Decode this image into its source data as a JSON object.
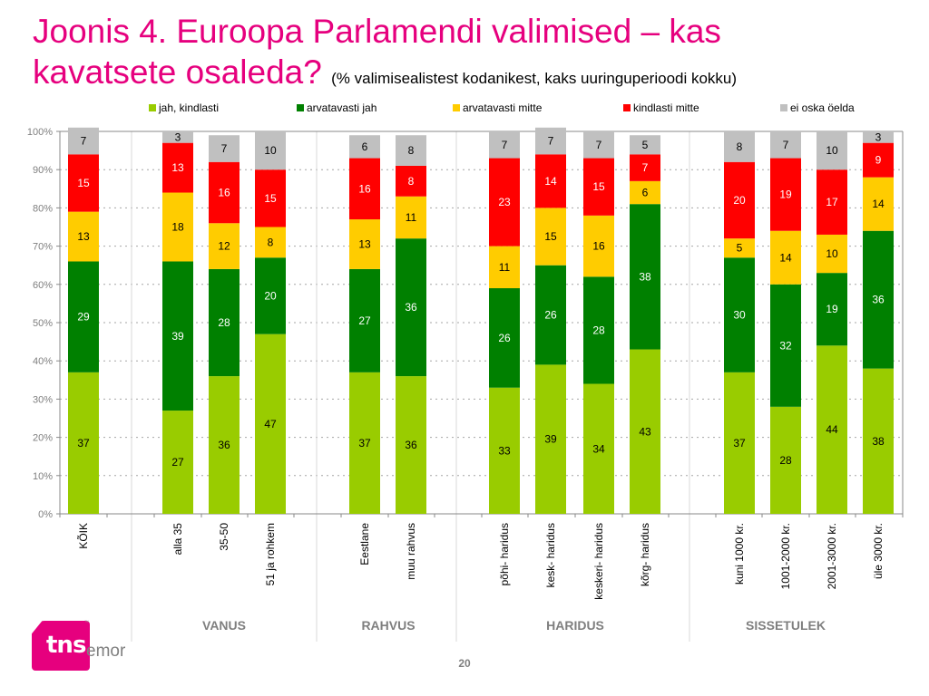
{
  "slide": {
    "title_line1": "Joonis 4. Euroopa Parlamendi valimised – kas",
    "title_line2": "kavatsete osaleda?",
    "subtitle": "(% valimisealistest kodanikest, kaks uuringuperioodi kokku)",
    "page_number": "20",
    "logo": {
      "brand": "tns",
      "suffix": "emor",
      "color": "#e6007e"
    }
  },
  "chart_data": {
    "type": "bar",
    "stacked": true,
    "title": "Joonis 4. Euroopa Parlamendi valimised – kas kavatsete osaleda?",
    "subtitle": "(% valimisealistest kodanikest, kaks uuringuperioodi kokku)",
    "xlabel": "",
    "ylabel": "",
    "ylim": [
      0,
      100
    ],
    "yticks": [
      "0%",
      "10%",
      "20%",
      "30%",
      "40%",
      "50%",
      "60%",
      "70%",
      "80%",
      "90%",
      "100%"
    ],
    "grid": true,
    "legend_position": "top",
    "categories": [
      "KÕIK",
      "alla 35",
      "35-50",
      "51 ja rohkem",
      "Eestlane",
      "muu rahvus",
      "põhi- haridus",
      "kesk- haridus",
      "keskeri- haridus",
      "kõrg- haridus",
      "kuni 1000 kr.",
      "1001-2000 kr.",
      "2001-3000 kr.",
      "üle 3000 kr."
    ],
    "groups": [
      {
        "label": "",
        "categories": [
          "KÕIK"
        ]
      },
      {
        "label": "VANUS",
        "categories": [
          "alla 35",
          "35-50",
          "51 ja rohkem"
        ]
      },
      {
        "label": "RAHVUS",
        "categories": [
          "Eestlane",
          "muu rahvus"
        ]
      },
      {
        "label": "HARIDUS",
        "categories": [
          "põhi- haridus",
          "kesk- haridus",
          "keskeri- haridus",
          "kõrg- haridus"
        ]
      },
      {
        "label": "SISSETULEK",
        "categories": [
          "kuni 1000 kr.",
          "1001-2000 kr.",
          "2001-3000 kr.",
          "üle 3000 kr."
        ]
      }
    ],
    "series": [
      {
        "name": "jah, kindlasti",
        "color": "#99cc00",
        "label_color": "#000000",
        "values": [
          37,
          27,
          36,
          47,
          37,
          36,
          33,
          39,
          34,
          43,
          37,
          28,
          44,
          38
        ]
      },
      {
        "name": "arvatavasti jah",
        "color": "#008000",
        "label_color": "#ffffff",
        "values": [
          29,
          39,
          28,
          20,
          27,
          36,
          26,
          26,
          28,
          38,
          30,
          32,
          19,
          36
        ]
      },
      {
        "name": "arvatavasti mitte",
        "color": "#ffcc00",
        "label_color": "#000000",
        "values": [
          13,
          18,
          12,
          8,
          13,
          11,
          11,
          15,
          16,
          6,
          5,
          14,
          10,
          14
        ]
      },
      {
        "name": "kindlasti mitte",
        "color": "#ff0000",
        "label_color": "#ffffff",
        "values": [
          15,
          13,
          16,
          15,
          16,
          8,
          23,
          14,
          15,
          7,
          20,
          19,
          17,
          9
        ]
      },
      {
        "name": "ei oska öelda",
        "color": "#c0c0c0",
        "label_color": "#000000",
        "values": [
          7,
          3,
          7,
          10,
          6,
          8,
          7,
          7,
          7,
          5,
          8,
          7,
          10,
          3
        ]
      }
    ]
  }
}
